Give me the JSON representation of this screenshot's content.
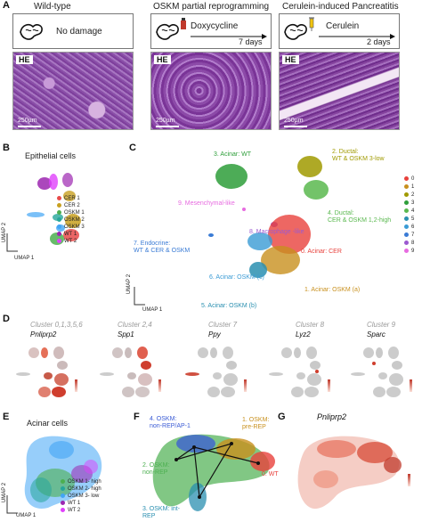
{
  "panels": {
    "a": "A",
    "b": "B",
    "c": "C",
    "d": "D",
    "e": "E",
    "f": "F",
    "g": "G"
  },
  "panel_a": {
    "conditions": [
      {
        "title": "Wild-type",
        "box_label": "No damage",
        "days": "",
        "he_tag": "HE",
        "scale": "250µm"
      },
      {
        "title": "OSKM partial reprogramming",
        "box_label": "Doxycycline",
        "days": "7 days",
        "he_tag": "HE",
        "scale": "250µm"
      },
      {
        "title": "Cerulein-induced Pancreatitis",
        "box_label": "Cerulein",
        "days": "2 days",
        "he_tag": "HE",
        "scale": "250µm"
      }
    ]
  },
  "panel_b": {
    "title": "Epithelial cells",
    "axis_y": "UMAP 2",
    "axis_x": "UMAP 1",
    "legend": [
      {
        "label": "CER 1",
        "color": "#e84a4a"
      },
      {
        "label": "CER 2",
        "color": "#c8a020"
      },
      {
        "label": "OSKM 1",
        "color": "#4caf50"
      },
      {
        "label": "OSKM 2",
        "color": "#26a69a"
      },
      {
        "label": "OSKM 3",
        "color": "#42a5f5"
      },
      {
        "label": "WT 1",
        "color": "#9c27b0"
      },
      {
        "label": "WT 2",
        "color": "#e040fb"
      }
    ]
  },
  "panel_c": {
    "axis_y": "UMAP 2",
    "axis_x": "UMAP 1",
    "labels": [
      {
        "text": "3. Acinar: WT",
        "color": "#2e9e3a"
      },
      {
        "text": "2. Ductal:\nWT & OSKM 3-low",
        "color": "#a09a00"
      },
      {
        "text": "4. Ductal:\nCER & OSKM 1,2-high",
        "color": "#5ab84f"
      },
      {
        "text": "9. Mesenchymal-like",
        "color": "#e76be0"
      },
      {
        "text": "8. Macrophage -like",
        "color": "#9b59d0"
      },
      {
        "text": "7. Endocrine:\nWT & CER & OSKM",
        "color": "#3a7bd5"
      },
      {
        "text": "0. Acinar: CER",
        "color": "#e8413c"
      },
      {
        "text": "6. Acinar: OSKM (c)",
        "color": "#3a9bd5"
      },
      {
        "text": "1. Acinar: OSKM (a)",
        "color": "#c8901e"
      },
      {
        "text": "5. Acinar: OSKM (b)",
        "color": "#2a8fb0"
      }
    ],
    "legend": [
      {
        "label": "0",
        "color": "#e8413c"
      },
      {
        "label": "1",
        "color": "#c8901e"
      },
      {
        "label": "2",
        "color": "#a09a00"
      },
      {
        "label": "3",
        "color": "#2e9e3a"
      },
      {
        "label": "4",
        "color": "#5ab84f"
      },
      {
        "label": "5",
        "color": "#2a8fb0"
      },
      {
        "label": "6",
        "color": "#3a9bd5"
      },
      {
        "label": "7",
        "color": "#3a7bd5"
      },
      {
        "label": "8",
        "color": "#9b59d0"
      },
      {
        "label": "9",
        "color": "#e76be0"
      }
    ]
  },
  "panel_d": {
    "genes": [
      {
        "cluster": "Cluster 0,1,3,5,6",
        "gene": "Pnliprp2"
      },
      {
        "cluster": "Cluster 2,4",
        "gene": "Spp1"
      },
      {
        "cluster": "Cluster 7",
        "gene": "Ppy"
      },
      {
        "cluster": "Cluster 8",
        "gene": "Lyz2"
      },
      {
        "cluster": "Cluster 9",
        "gene": "Sparc"
      }
    ]
  },
  "panel_e": {
    "title": "Acinar cells",
    "axis_y": "UMAP 2",
    "axis_x": "UMAP 1",
    "legend": [
      {
        "label": "OSKM 1- high",
        "color": "#4caf50"
      },
      {
        "label": "OSKM 2- high",
        "color": "#26a69a"
      },
      {
        "label": "OSKM 3- low",
        "color": "#42a5f5"
      },
      {
        "label": "WT 1",
        "color": "#9c27b0"
      },
      {
        "label": "WT 2",
        "color": "#e040fb"
      }
    ]
  },
  "panel_f": {
    "labels": [
      {
        "text": "4. OSKM:\nnon-REP/AP-1",
        "color": "#3a5bd5"
      },
      {
        "text": "1. OSKM:\npre-REP",
        "color": "#c8901e"
      },
      {
        "text": "2. OSKM:\nnon-REP",
        "color": "#4caf50"
      },
      {
        "text": "0. WT",
        "color": "#e8413c"
      },
      {
        "text": "3. OSKM: int-\nREP",
        "color": "#2a8fb0"
      }
    ]
  },
  "panel_g": {
    "gene": "Pnliprp2"
  }
}
